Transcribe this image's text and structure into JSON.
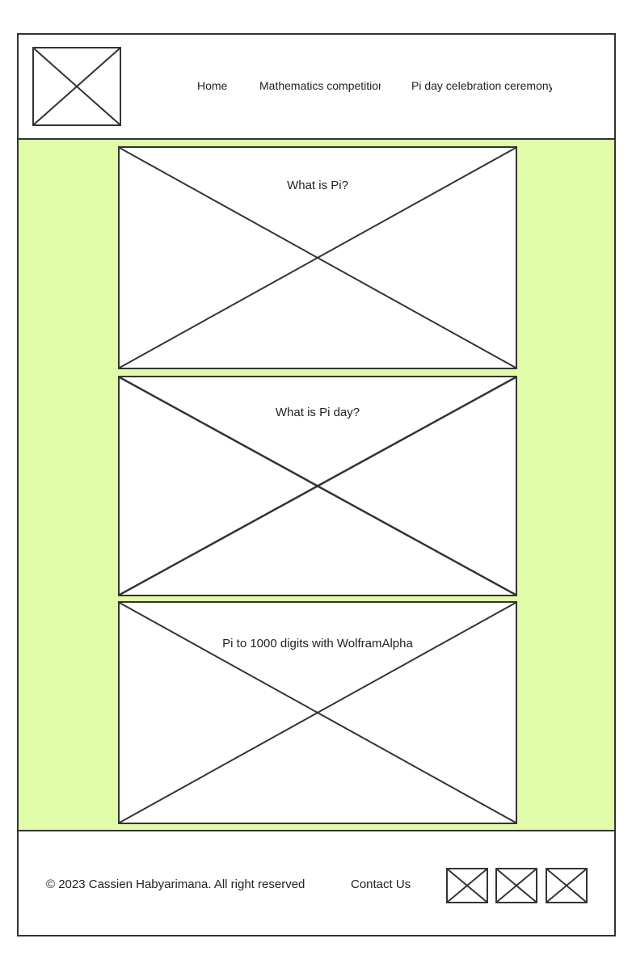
{
  "header": {
    "logo_icon": "image-placeholder-icon",
    "nav": [
      {
        "label": "Home"
      },
      {
        "label": "Mathematics competition"
      },
      {
        "label": "Pi day celebration ceremony"
      }
    ]
  },
  "main": {
    "background_color": "#e0fca8",
    "cards": [
      {
        "title": "What is Pi?"
      },
      {
        "title": "What is Pi day?"
      },
      {
        "title": "Pi to 1000 digits with WolframAlpha"
      }
    ]
  },
  "footer": {
    "copyright": "© 2023 Cassien Habyarimana. All right reserved",
    "contact_label": "Contact Us",
    "social_icons": [
      "image-placeholder-icon",
      "image-placeholder-icon",
      "image-placeholder-icon"
    ]
  }
}
